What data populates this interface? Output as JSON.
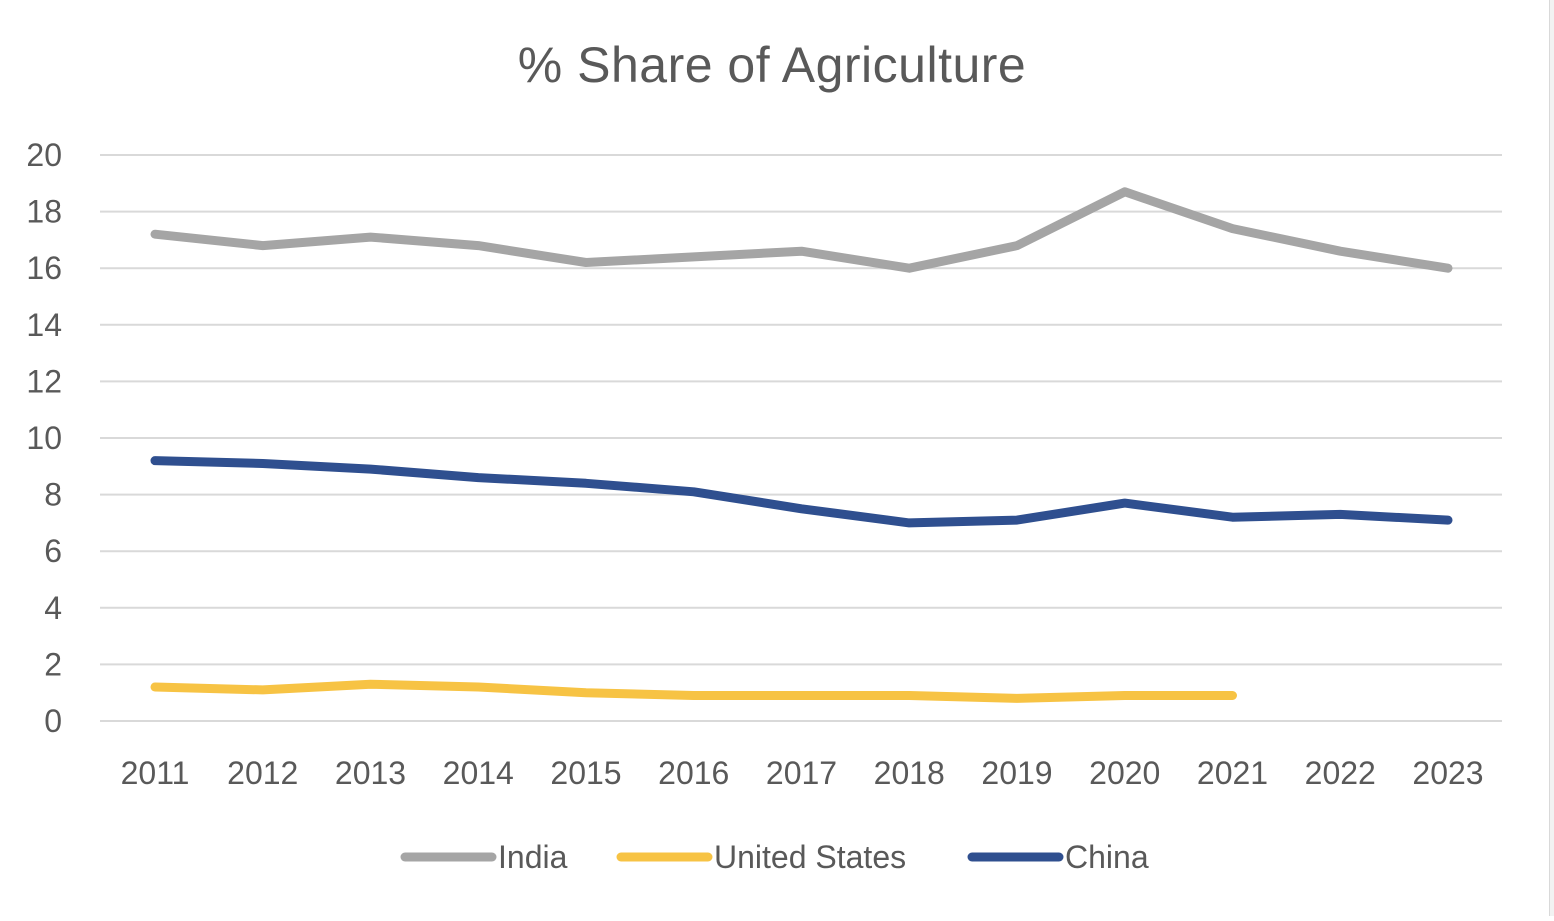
{
  "chart_data": {
    "type": "line",
    "title": "% Share of Agriculture",
    "xlabel": "",
    "ylabel": "",
    "categories": [
      "2011",
      "2012",
      "2013",
      "2014",
      "2015",
      "2016",
      "2017",
      "2018",
      "2019",
      "2020",
      "2021",
      "2022",
      "2023"
    ],
    "y_ticks": [
      "0",
      "2",
      "4",
      "6",
      "8",
      "10",
      "12",
      "14",
      "16",
      "18",
      "20"
    ],
    "ylim": [
      0,
      20
    ],
    "grid": true,
    "legend_position": "bottom",
    "series": [
      {
        "name": "India",
        "color": "#A5A5A5",
        "values": [
          17.2,
          16.8,
          17.1,
          16.8,
          16.2,
          16.4,
          16.6,
          16.0,
          16.8,
          18.7,
          17.4,
          16.6,
          16.0
        ]
      },
      {
        "name": "United States",
        "color": "#F7C344",
        "values": [
          1.2,
          1.1,
          1.3,
          1.2,
          1.0,
          0.9,
          0.9,
          0.9,
          0.8,
          0.9,
          0.9,
          null,
          null
        ]
      },
      {
        "name": "China",
        "color": "#2F4F8F",
        "values": [
          9.2,
          9.1,
          8.9,
          8.6,
          8.4,
          8.1,
          7.5,
          7.0,
          7.1,
          7.7,
          7.2,
          7.3,
          7.1
        ]
      }
    ]
  }
}
